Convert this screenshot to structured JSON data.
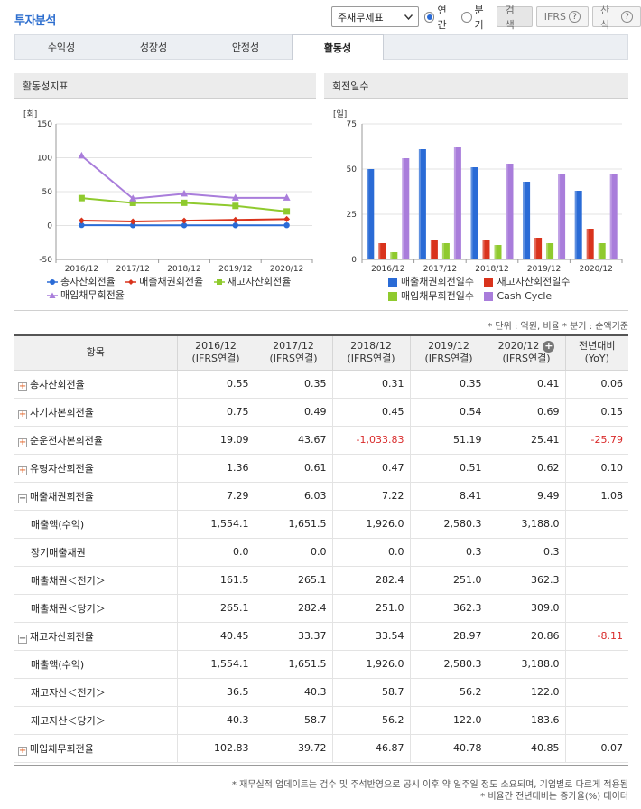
{
  "title": "투자분석",
  "controls": {
    "select_value": "주재무제표",
    "radio_annual": "연간",
    "radio_quarter": "분기",
    "search": "검색",
    "ifrs": "IFRS",
    "formula": "산식"
  },
  "tabs": [
    "수익성",
    "성장성",
    "안정성",
    "활동성"
  ],
  "active_tab": "활동성",
  "left_chart": {
    "header": "활동성지표",
    "unit": "[회]",
    "legend": [
      "총자산회전율",
      "매출채권회전율",
      "재고자산회전율",
      "매입채무회전율"
    ]
  },
  "right_chart": {
    "header": "회전일수",
    "unit": "[일]",
    "legend": [
      "매출채권회전일수",
      "재고자산회전일수",
      "매입채무회전일수",
      "Cash Cycle"
    ]
  },
  "chart_data": [
    {
      "type": "line",
      "title": "활동성지표",
      "ylabel": "[회]",
      "ylim": [
        -50,
        150
      ],
      "yticks": [
        "150",
        "100",
        "50",
        "0",
        "-50"
      ],
      "categories": [
        "2016/12",
        "2017/12",
        "2018/12",
        "2019/12",
        "2020/12"
      ],
      "series": [
        {
          "name": "총자산회전율",
          "color": "#2a6bd6",
          "values": [
            0.55,
            0.35,
            0.31,
            0.35,
            0.41
          ]
        },
        {
          "name": "매출채권회전율",
          "color": "#d9331c",
          "values": [
            7.29,
            6.03,
            7.22,
            8.41,
            9.49
          ]
        },
        {
          "name": "재고자산회전율",
          "color": "#8fca2e",
          "values": [
            40.45,
            33.37,
            33.54,
            28.97,
            20.86
          ]
        },
        {
          "name": "매입채무회전율",
          "color": "#a97ddb",
          "values": [
            102.83,
            39.72,
            46.87,
            40.78,
            40.85
          ]
        }
      ],
      "legend_position": "bottom"
    },
    {
      "type": "bar",
      "title": "회전일수",
      "ylabel": "[일]",
      "ylim": [
        0,
        75
      ],
      "yticks": [
        "75",
        "50",
        "25",
        "0"
      ],
      "categories": [
        "2016/12",
        "2017/12",
        "2018/12",
        "2019/12",
        "2020/12"
      ],
      "series": [
        {
          "name": "매출채권회전일수",
          "color": "#2a6bd6",
          "values": [
            50,
            61,
            51,
            43,
            38
          ]
        },
        {
          "name": "재고자산회전일수",
          "color": "#d9331c",
          "values": [
            9,
            11,
            11,
            12,
            17
          ]
        },
        {
          "name": "매입채무회전일수",
          "color": "#8fca2e",
          "values": [
            4,
            9,
            8,
            9,
            9
          ]
        },
        {
          "name": "Cash Cycle",
          "color": "#a97ddb",
          "values": [
            56,
            62,
            53,
            47,
            47
          ]
        }
      ],
      "legend_position": "bottom"
    }
  ],
  "notes_top": "* 단위 : 억원, 비율    * 분기 : 순액기준",
  "table": {
    "headers": [
      {
        "l1": "항목",
        "l2": ""
      },
      {
        "l1": "2016/12",
        "l2": "(IFRS연결)"
      },
      {
        "l1": "2017/12",
        "l2": "(IFRS연결)"
      },
      {
        "l1": "2018/12",
        "l2": "(IFRS연결)"
      },
      {
        "l1": "2019/12",
        "l2": "(IFRS연결)"
      },
      {
        "l1": "2020/12",
        "l2": "(IFRS연결)"
      },
      {
        "l1": "전년대비",
        "l2": "(YoY)"
      }
    ],
    "rows": [
      {
        "label": "총자산회전율",
        "toggle": "plus",
        "values": [
          "0.55",
          "0.35",
          "0.31",
          "0.35",
          "0.41",
          "0.06"
        ]
      },
      {
        "label": "자기자본회전율",
        "toggle": "plus",
        "values": [
          "0.75",
          "0.49",
          "0.45",
          "0.54",
          "0.69",
          "0.15"
        ]
      },
      {
        "label": "순운전자본회전율",
        "toggle": "plus",
        "values": [
          "19.09",
          "43.67",
          "-1,033.83",
          "51.19",
          "25.41",
          "-25.79"
        ]
      },
      {
        "label": "유형자산회전율",
        "toggle": "plus",
        "values": [
          "1.36",
          "0.61",
          "0.47",
          "0.51",
          "0.62",
          "0.10"
        ]
      },
      {
        "label": "매출채권회전율",
        "toggle": "minus",
        "values": [
          "7.29",
          "6.03",
          "7.22",
          "8.41",
          "9.49",
          "1.08"
        ]
      },
      {
        "label": "매출액(수익)",
        "toggle": "",
        "values": [
          "1,554.1",
          "1,651.5",
          "1,926.0",
          "2,580.3",
          "3,188.0",
          ""
        ]
      },
      {
        "label": "장기매출채권",
        "toggle": "",
        "values": [
          "0.0",
          "0.0",
          "0.0",
          "0.3",
          "0.3",
          ""
        ]
      },
      {
        "label": "매출채권＜전기＞",
        "toggle": "",
        "values": [
          "161.5",
          "265.1",
          "282.4",
          "251.0",
          "362.3",
          ""
        ]
      },
      {
        "label": "매출채권＜당기＞",
        "toggle": "",
        "values": [
          "265.1",
          "282.4",
          "251.0",
          "362.3",
          "309.0",
          ""
        ]
      },
      {
        "label": "재고자산회전율",
        "toggle": "minus",
        "values": [
          "40.45",
          "33.37",
          "33.54",
          "28.97",
          "20.86",
          "-8.11"
        ]
      },
      {
        "label": "매출액(수익)",
        "toggle": "",
        "values": [
          "1,554.1",
          "1,651.5",
          "1,926.0",
          "2,580.3",
          "3,188.0",
          ""
        ]
      },
      {
        "label": "재고자산＜전기＞",
        "toggle": "",
        "values": [
          "36.5",
          "40.3",
          "58.7",
          "56.2",
          "122.0",
          ""
        ]
      },
      {
        "label": "재고자산＜당기＞",
        "toggle": "",
        "values": [
          "40.3",
          "58.7",
          "56.2",
          "122.0",
          "183.6",
          ""
        ]
      },
      {
        "label": "매입채무회전율",
        "toggle": "plus",
        "values": [
          "102.83",
          "39.72",
          "46.87",
          "40.78",
          "40.85",
          "0.07"
        ]
      }
    ]
  },
  "notes_bottom": [
    "* 재무실적 업데이트는 검수 및 주석반영으로 공시 이후 약 일주일 정도 소요되며, 기업별로 다르게 적용됨",
    "* 비율간 전년대비는 증가율(%) 데이터"
  ]
}
